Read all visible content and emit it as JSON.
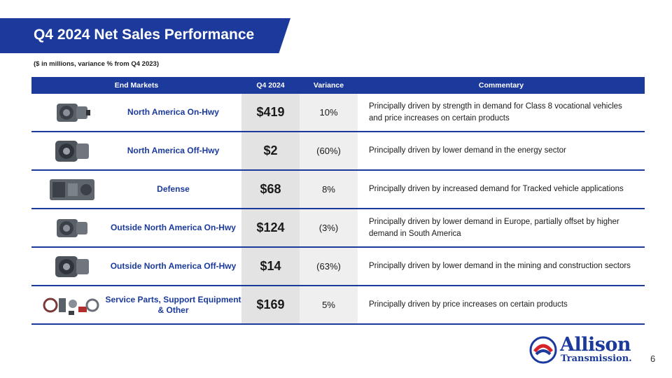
{
  "header": {
    "title": "Q4 2024 Net Sales Performance",
    "subtitle": "($ in millions, variance % from Q4 2023)"
  },
  "table": {
    "columns": {
      "market": "End Markets",
      "q4": "Q4 2024",
      "variance": "Variance",
      "commentary": "Commentary"
    },
    "rows": [
      {
        "market": "North America On-Hwy",
        "q4": "$419",
        "variance": "10%",
        "commentary": "Principally driven by strength in demand for Class 8 vocational vehicles and price increases on certain products",
        "image": "transmission-on-hwy"
      },
      {
        "market": "North America Off-Hwy",
        "q4": "$2",
        "variance": "(60%)",
        "commentary": "Principally driven by lower demand in the energy sector",
        "image": "transmission-off-hwy"
      },
      {
        "market": "Defense",
        "q4": "$68",
        "variance": "8%",
        "commentary": "Principally driven by increased demand for Tracked vehicle applications",
        "image": "transmission-defense"
      },
      {
        "market": "Outside North America On-Hwy",
        "q4": "$124",
        "variance": "(3%)",
        "commentary": "Principally driven by lower demand in Europe, partially offset by higher demand in South America",
        "image": "transmission-on-hwy"
      },
      {
        "market": "Outside North America Off-Hwy",
        "q4": "$14",
        "variance": "(63%)",
        "commentary": "Principally driven by lower demand in the mining and construction sectors",
        "image": "transmission-off-hwy"
      },
      {
        "market": "Service Parts, Support Equipment & Other",
        "q4": "$169",
        "variance": "5%",
        "commentary": "Principally driven by price increases on certain products",
        "image": "service-parts"
      }
    ]
  },
  "logo": {
    "line1": "Allison",
    "line2": "Transmission."
  },
  "page_number": "6",
  "colors": {
    "brand_blue": "#1b3a9c",
    "brand_red": "#d6232a",
    "q4_column_bg": "#e3e3e3",
    "variance_column_bg": "#efefef"
  }
}
